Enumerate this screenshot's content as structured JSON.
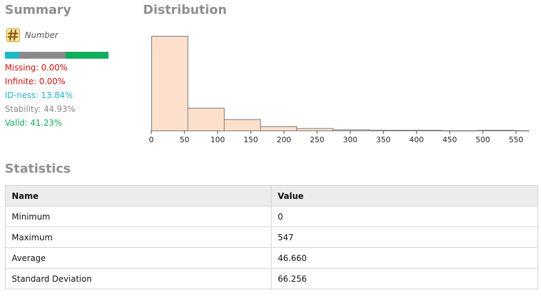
{
  "summary": {
    "title": "Summary",
    "type_label": "Number",
    "type_icon": "hash-icon",
    "quality_bar": [
      {
        "key": "idness",
        "fraction": 0.1384,
        "color": "#1fb6c6"
      },
      {
        "key": "stability",
        "fraction": 0.4493,
        "color": "#8a8a8a"
      },
      {
        "key": "valid",
        "fraction": 0.4123,
        "color": "#10ad5a"
      }
    ],
    "metrics": [
      {
        "text": "Missing: 0.00%",
        "color": "#cc1111"
      },
      {
        "text": "Infinite: 0.00%",
        "color": "#cc1111"
      },
      {
        "text": "ID-ness: 13.84%",
        "color": "#1fb6c6"
      },
      {
        "text": "Stability: 44.93%",
        "color": "#8a8a8a"
      },
      {
        "text": "Valid: 41.23%",
        "color": "#10ad5a"
      }
    ]
  },
  "distribution": {
    "title": "Distribution"
  },
  "chart_data": {
    "type": "bar",
    "xlim": [
      0,
      547
    ],
    "xticks": [
      0,
      50,
      100,
      150,
      200,
      250,
      300,
      350,
      400,
      450,
      500,
      550
    ],
    "bins": [
      {
        "start": 0,
        "end": 54.7,
        "count": 1.0
      },
      {
        "start": 54.7,
        "end": 109.4,
        "count": 0.24
      },
      {
        "start": 109.4,
        "end": 164.1,
        "count": 0.12
      },
      {
        "start": 164.1,
        "end": 218.8,
        "count": 0.045
      },
      {
        "start": 218.8,
        "end": 273.5,
        "count": 0.025
      },
      {
        "start": 273.5,
        "end": 328.2,
        "count": 0.012
      },
      {
        "start": 328.2,
        "end": 382.9,
        "count": 0.006
      },
      {
        "start": 382.9,
        "end": 437.6,
        "count": 0.006
      },
      {
        "start": 437.6,
        "end": 492.3,
        "count": 0.0
      },
      {
        "start": 492.3,
        "end": 547,
        "count": 0.006
      }
    ],
    "bar_color": "#fde0cc",
    "grid": false
  },
  "statistics": {
    "title": "Statistics",
    "headers": {
      "name": "Name",
      "value": "Value"
    },
    "rows": [
      {
        "name": "Minimum",
        "value": "0"
      },
      {
        "name": "Maximum",
        "value": "547"
      },
      {
        "name": "Average",
        "value": "46.660"
      },
      {
        "name": "Standard Deviation",
        "value": "66.256"
      }
    ]
  }
}
